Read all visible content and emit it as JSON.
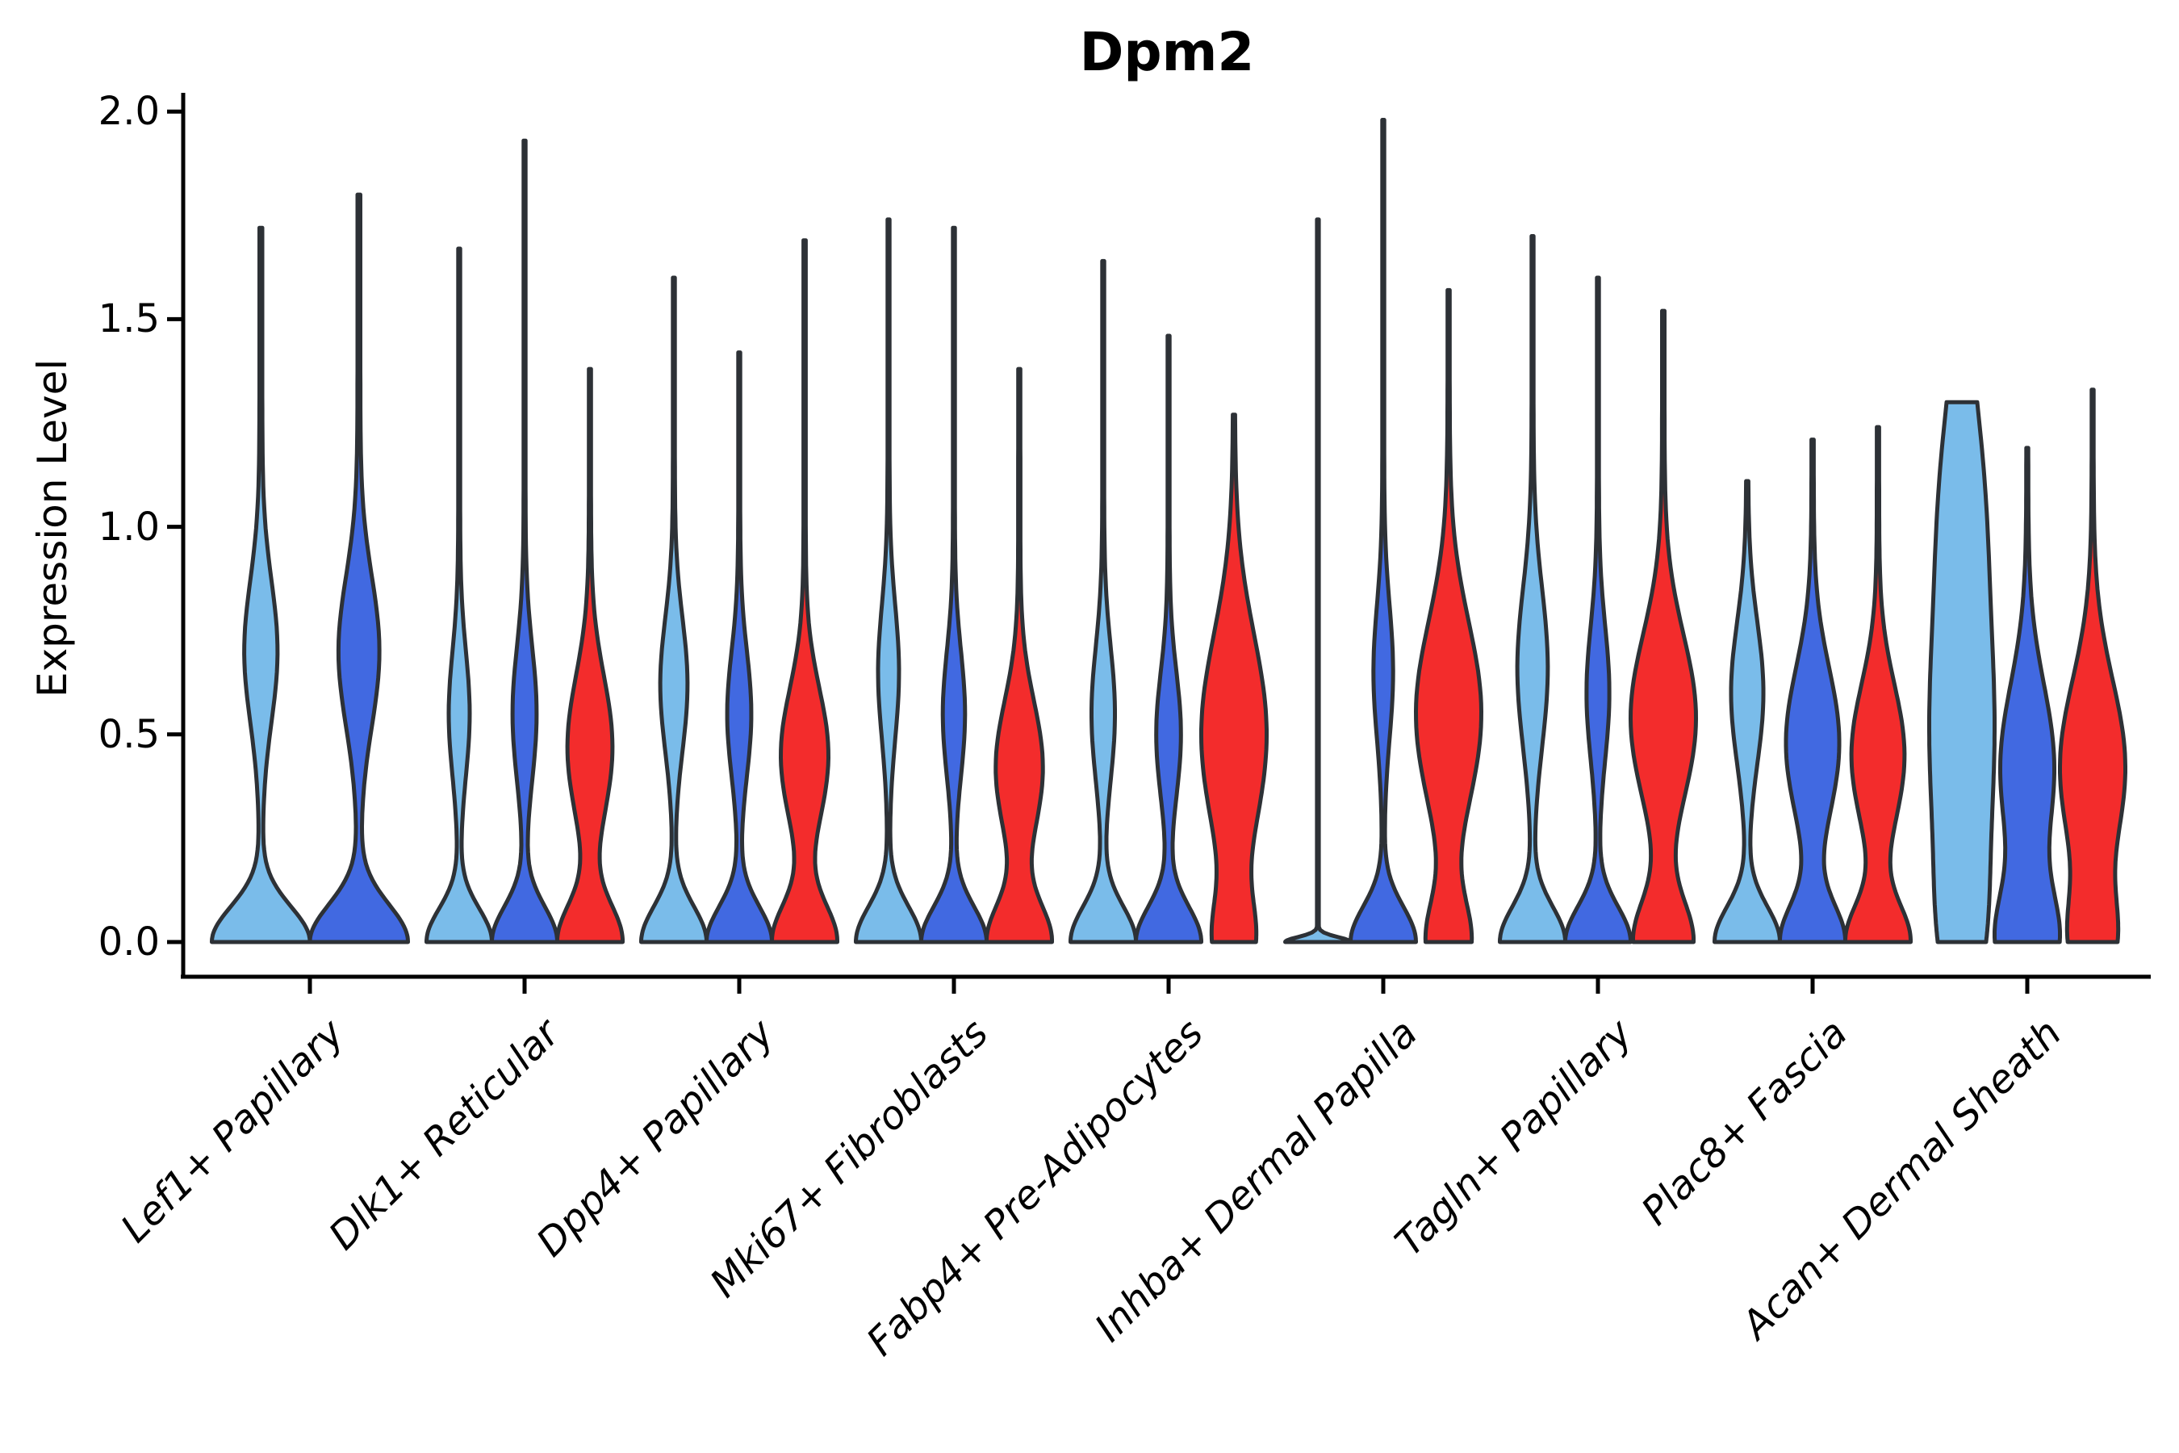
{
  "title": "Dpm2",
  "y_axis": {
    "label": "Expression Level",
    "tick_labels": [
      "0.0",
      "0.5",
      "1.0",
      "1.5",
      "2.0"
    ]
  },
  "colors": {
    "light_blue": "#7ABCEA",
    "dark_blue": "#4169E1",
    "red": "#F32C2C",
    "violin_outline": "#2D3136",
    "axis": "#000000"
  },
  "chart_data": {
    "type": "violin",
    "title": "Dpm2",
    "ylabel": "Expression Level",
    "xlabel": "",
    "y_ticks": [
      0.0,
      0.5,
      1.0,
      1.5,
      2.0
    ],
    "ylim": [
      0.0,
      2.05
    ],
    "grid": false,
    "legend": "none",
    "series_colors": [
      "#7ABCEA",
      "#4169E1",
      "#F32C2C"
    ],
    "note": "Each group shows width-normalized violins of expression level; kde entries are [center, sigma, weight] gaussian components of the density profile, max is the top of each violin (maximum expression).",
    "groups": [
      {
        "label": "Lef1+ Papillary",
        "violins": [
          {
            "color": 0,
            "max": 1.72,
            "kde": [
              [
                0,
                0.085,
                1.0
              ],
              [
                0.7,
                0.17,
                0.32
              ]
            ]
          },
          {
            "color": 1,
            "max": 1.8,
            "kde": [
              [
                0,
                0.09,
                1.0
              ],
              [
                0.7,
                0.18,
                0.4
              ]
            ]
          }
        ]
      },
      {
        "label": "Dlk1+ Reticular",
        "violins": [
          {
            "color": 0,
            "max": 1.67,
            "kde": [
              [
                0,
                0.08,
                1.0
              ],
              [
                0.55,
                0.15,
                0.3
              ]
            ]
          },
          {
            "color": 1,
            "max": 1.93,
            "kde": [
              [
                0,
                0.085,
                1.0
              ],
              [
                0.55,
                0.16,
                0.35
              ]
            ]
          },
          {
            "color": 2,
            "max": 1.38,
            "kde": [
              [
                0,
                0.09,
                0.9
              ],
              [
                0.47,
                0.17,
                0.62
              ]
            ]
          }
        ]
      },
      {
        "label": "Dpp4+ Papillary",
        "violins": [
          {
            "color": 0,
            "max": 1.6,
            "kde": [
              [
                0,
                0.085,
                1.0
              ],
              [
                0.62,
                0.16,
                0.4
              ]
            ]
          },
          {
            "color": 1,
            "max": 1.42,
            "kde": [
              [
                0,
                0.085,
                1.0
              ],
              [
                0.55,
                0.15,
                0.35
              ]
            ]
          },
          {
            "color": 2,
            "max": 1.69,
            "kde": [
              [
                0,
                0.09,
                0.85
              ],
              [
                0.45,
                0.16,
                0.62
              ]
            ]
          }
        ]
      },
      {
        "label": "Mki67+ Fibroblasts",
        "violins": [
          {
            "color": 0,
            "max": 1.74,
            "kde": [
              [
                0,
                0.085,
                1.0
              ],
              [
                0.65,
                0.16,
                0.3
              ]
            ]
          },
          {
            "color": 1,
            "max": 1.72,
            "kde": [
              [
                0,
                0.085,
                1.0
              ],
              [
                0.55,
                0.15,
                0.32
              ]
            ]
          },
          {
            "color": 2,
            "max": 1.38,
            "kde": [
              [
                0,
                0.09,
                0.85
              ],
              [
                0.42,
                0.16,
                0.62
              ]
            ]
          }
        ]
      },
      {
        "label": "Fabp4+ Pre-Adipocytes",
        "violins": [
          {
            "color": 0,
            "max": 1.64,
            "kde": [
              [
                0,
                0.085,
                1.0
              ],
              [
                0.55,
                0.16,
                0.34
              ]
            ]
          },
          {
            "color": 1,
            "max": 1.46,
            "kde": [
              [
                0,
                0.085,
                1.0
              ],
              [
                0.5,
                0.15,
                0.36
              ]
            ]
          },
          {
            "color": 2,
            "max": 1.27,
            "kde": [
              [
                0,
                0.1,
                0.55
              ],
              [
                0.5,
                0.24,
                1.0
              ]
            ]
          }
        ]
      },
      {
        "label": "Inhba+ Dermal Papilla",
        "violins": [
          {
            "color": 0,
            "max": 1.74,
            "kde": [
              [
                0,
                0.012,
                1.0
              ]
            ],
            "spine": 0.02
          },
          {
            "color": 1,
            "max": 1.98,
            "kde": [
              [
                0,
                0.085,
                1.0
              ],
              [
                0.65,
                0.16,
                0.28
              ]
            ]
          },
          {
            "color": 2,
            "max": 1.57,
            "kde": [
              [
                0,
                0.1,
                0.6
              ],
              [
                0.55,
                0.22,
                0.92
              ]
            ]
          }
        ]
      },
      {
        "label": "Tagln+ Papillary",
        "violins": [
          {
            "color": 0,
            "max": 1.7,
            "kde": [
              [
                0,
                0.085,
                1.0
              ],
              [
                0.66,
                0.19,
                0.45
              ]
            ]
          },
          {
            "color": 1,
            "max": 1.6,
            "kde": [
              [
                0,
                0.085,
                1.0
              ],
              [
                0.6,
                0.16,
                0.33
              ]
            ]
          },
          {
            "color": 2,
            "max": 1.52,
            "kde": [
              [
                0,
                0.1,
                0.7
              ],
              [
                0.54,
                0.2,
                0.78
              ]
            ]
          }
        ]
      },
      {
        "label": "Plac8+ Fascia",
        "violins": [
          {
            "color": 0,
            "max": 1.11,
            "kde": [
              [
                0,
                0.085,
                1.0
              ],
              [
                0.6,
                0.17,
                0.48
              ]
            ]
          },
          {
            "color": 1,
            "max": 1.21,
            "kde": [
              [
                0,
                0.09,
                0.82
              ],
              [
                0.48,
                0.18,
                0.68
              ]
            ]
          },
          {
            "color": 2,
            "max": 1.24,
            "kde": [
              [
                0,
                0.09,
                0.8
              ],
              [
                0.45,
                0.17,
                0.66
              ]
            ]
          }
        ]
      },
      {
        "label": "Acan+ Dermal Sheath",
        "violins": [
          {
            "color": 0,
            "max": 1.3,
            "kde": [
              [
                0,
                0.18,
                0.5
              ],
              [
                0.45,
                0.3,
                1.0
              ],
              [
                1.05,
                0.3,
                0.7
              ]
            ]
          },
          {
            "color": 1,
            "max": 1.19,
            "kde": [
              [
                0,
                0.12,
                0.88
              ],
              [
                0.42,
                0.2,
                0.8
              ]
            ]
          },
          {
            "color": 2,
            "max": 1.33,
            "kde": [
              [
                0,
                0.11,
                0.62
              ],
              [
                0.42,
                0.21,
                1.0
              ]
            ]
          }
        ]
      }
    ]
  }
}
